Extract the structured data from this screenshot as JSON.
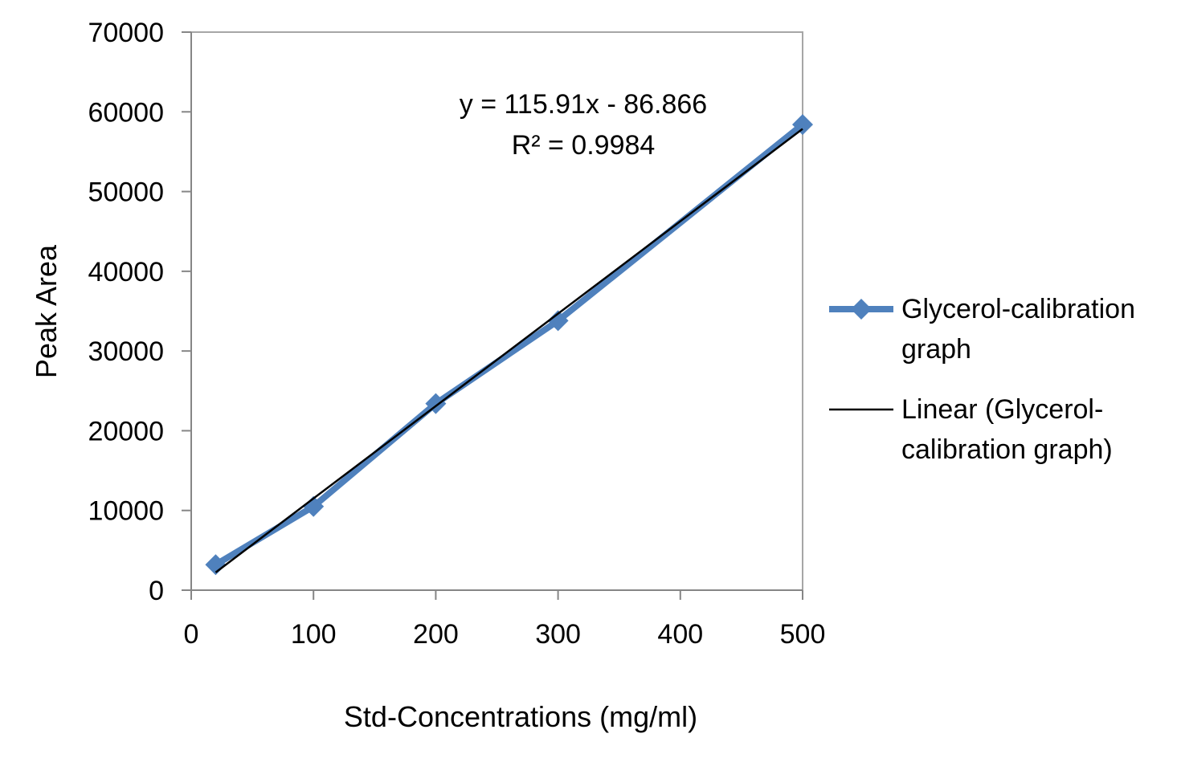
{
  "chart_data": {
    "type": "scatter",
    "title": "",
    "xlabel": "Std-Concentrations (mg/ml)",
    "ylabel": "Peak Area",
    "xlim": [
      0,
      500
    ],
    "ylim": [
      0,
      70000
    ],
    "xticks": [
      0,
      100,
      200,
      300,
      400,
      500
    ],
    "yticks": [
      0,
      10000,
      20000,
      30000,
      40000,
      50000,
      60000,
      70000
    ],
    "grid": false,
    "legend_position": "right",
    "series": [
      {
        "name": "Glycerol-calibration graph",
        "style": "line-markers",
        "marker": "diamond",
        "color": "#4F81BD",
        "x": [
          20,
          100,
          200,
          300,
          500
        ],
        "y": [
          3200,
          10500,
          23400,
          33800,
          58400
        ]
      }
    ],
    "trendline": {
      "name": "Linear (Glycerol-calibration graph)",
      "type": "linear",
      "color": "#000000",
      "slope": 115.91,
      "intercept": -86.866,
      "x_range": [
        20,
        500
      ],
      "equation_text": "y = 115.91x - 86.866",
      "r2_text": "R² = 0.9984"
    },
    "legend_labels": {
      "series_line1": "Glycerol-calibration",
      "series_line2": "graph",
      "trend_line1": "Linear (Glycerol-",
      "trend_line2": "calibration graph)"
    }
  }
}
